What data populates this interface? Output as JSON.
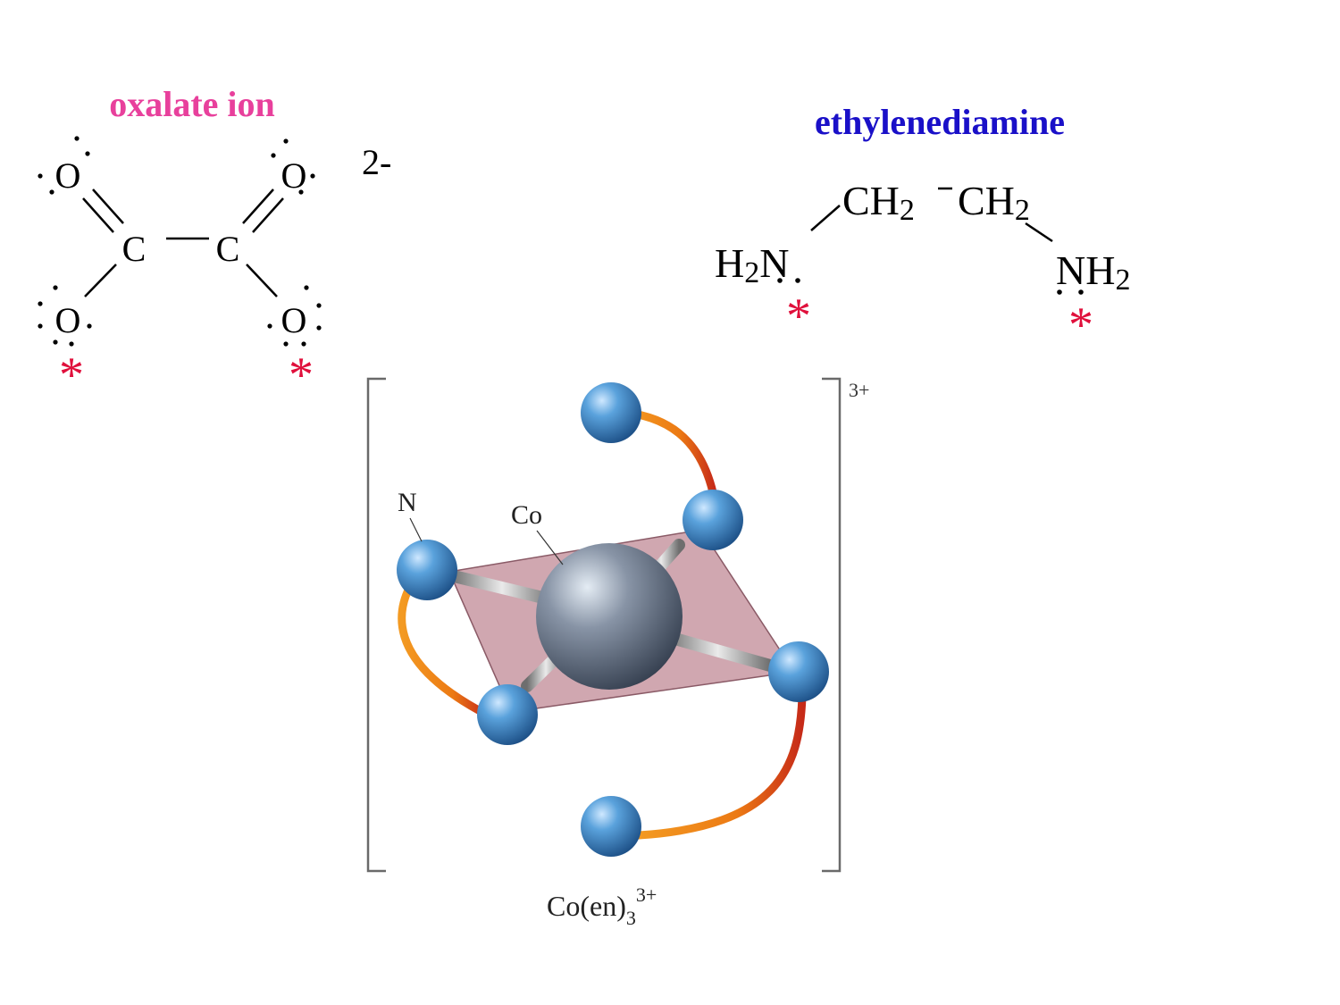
{
  "colors": {
    "oxalate_title": "#e8409c",
    "en_title": "#1a10c8",
    "asterisk": "#e0103c",
    "bond": "#000000",
    "atom_blue": "#3a86c8",
    "cobalt": "#7c8898",
    "ribbon_orange": "#f08a18",
    "ribbon_red": "#c8281c",
    "plane": "#c08a96",
    "bracket": "#6a6a6a"
  },
  "oxalate": {
    "title": "oxalate ion",
    "charge": "2-",
    "o_top_left": "O",
    "o_top_right": "O",
    "c_left": "C",
    "c_right": "C",
    "o_bottom_left": "O",
    "o_bottom_right": "O",
    "asterisk": "*"
  },
  "ethylenediamine": {
    "title": "ethylenediamine",
    "ch2_left": "CH",
    "ch2_right": "CH",
    "h2n_h": "H",
    "h2n_n": "N",
    "nh2_n": "NH",
    "sub_2": "2",
    "asterisk": "*"
  },
  "complex": {
    "label_n": "N",
    "label_co": "Co",
    "charge": "3+",
    "caption_main": "Co(en)",
    "caption_sub": "3",
    "caption_sup": "3+"
  },
  "icons": [
    "lone-pair-dots",
    "coordinating-atom-asterisk",
    "ligand-ribbon"
  ]
}
